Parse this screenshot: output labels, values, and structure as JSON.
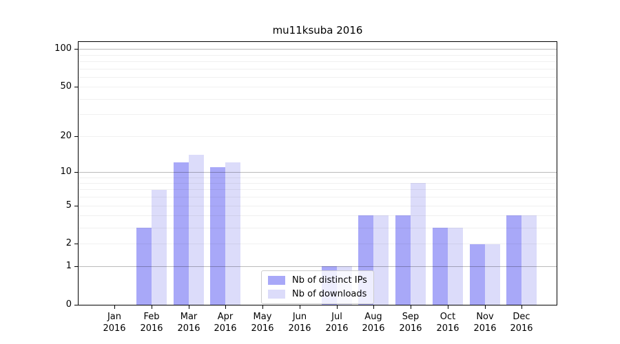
{
  "chart_data": {
    "type": "bar",
    "title": "mu11ksuba 2016",
    "year": "2016",
    "categories": [
      "Jan",
      "Feb",
      "Mar",
      "Apr",
      "May",
      "Jun",
      "Jul",
      "Aug",
      "Sep",
      "Oct",
      "Nov",
      "Dec"
    ],
    "series": [
      {
        "name": "Nb of distinct IPs",
        "color": "#a8a8f8",
        "values": [
          0,
          3,
          12,
          11,
          0,
          0,
          1,
          4,
          4,
          3,
          2,
          4
        ]
      },
      {
        "name": "Nb of downloads",
        "color": "#dcdcfa",
        "values": [
          0,
          7,
          14,
          12,
          0,
          0,
          1,
          4,
          8,
          3,
          2,
          4
        ]
      }
    ],
    "xlabel": "",
    "ylabel": "",
    "yscale": "log1p",
    "ylim": [
      0,
      114
    ],
    "yticks": [
      0,
      1,
      2,
      5,
      10,
      20,
      50,
      100
    ],
    "yticks_major_grid": [
      1,
      10,
      100
    ],
    "yticks_minor": [
      3,
      4,
      6,
      7,
      8,
      9,
      30,
      40,
      60,
      70,
      80,
      90
    ],
    "grid": "horizontal",
    "legend_position": "lower center"
  }
}
